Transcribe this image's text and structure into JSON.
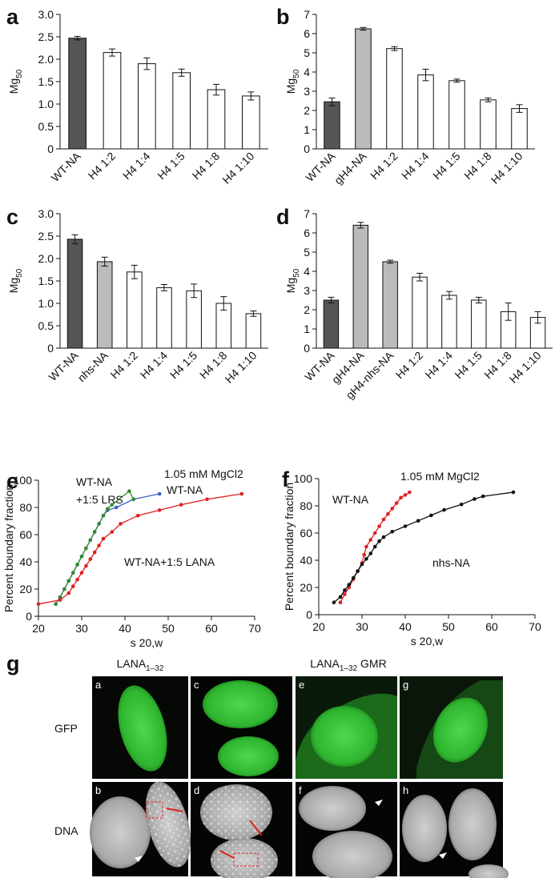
{
  "chart_data": [
    {
      "type": "bar",
      "label": "a",
      "y_label": "Mg",
      "y_label_subscript": "50",
      "categories": [
        "WT-NA",
        "H4 1:2",
        "H4 1:4",
        "H4 1:5",
        "H4 1:8",
        "H4 1:10"
      ],
      "values": [
        2.47,
        2.15,
        1.9,
        1.7,
        1.32,
        1.18
      ],
      "errors": [
        0.04,
        0.08,
        0.13,
        0.08,
        0.12,
        0.09
      ],
      "colors": [
        "#555555",
        "#ffffff",
        "#ffffff",
        "#ffffff",
        "#ffffff",
        "#ffffff"
      ],
      "ylim": [
        0,
        3
      ],
      "yticks": [
        0,
        0.5,
        {
          "value": 1,
          "label": "1.0"
        },
        1.5,
        {
          "value": 2,
          "label": "2.0"
        },
        2.5,
        {
          "value": 3,
          "label": "3.0"
        }
      ]
    },
    {
      "type": "bar",
      "label": "b",
      "y_label": "Mg",
      "y_label_subscript": "50",
      "categories": [
        "WT-NA",
        "gH4-NA",
        "H4 1:2",
        "H4 1:4",
        "H4 1:5",
        "H4 1:8",
        "H4 1:10"
      ],
      "values": [
        2.45,
        6.25,
        5.22,
        3.85,
        3.55,
        2.55,
        2.1
      ],
      "errors": [
        0.2,
        0.07,
        0.1,
        0.3,
        0.08,
        0.1,
        0.2
      ],
      "colors": [
        "#555555",
        "#bbbbbb",
        "#ffffff",
        "#ffffff",
        "#ffffff",
        "#ffffff",
        "#ffffff"
      ],
      "ylim": [
        0,
        7
      ],
      "yticks": [
        0,
        1,
        2,
        3,
        4,
        5,
        6,
        7
      ]
    },
    {
      "type": "bar",
      "label": "c",
      "y_label": "Mg",
      "y_label_subscript": "50",
      "categories": [
        "WT-NA",
        "nhs-NA",
        "H4 1:2",
        "H4 1:4",
        "H4 1:5",
        "H4 1:8",
        "H4 1:10"
      ],
      "values": [
        2.43,
        1.93,
        1.7,
        1.35,
        1.28,
        1.0,
        0.77
      ],
      "errors": [
        0.1,
        0.1,
        0.15,
        0.07,
        0.15,
        0.15,
        0.06
      ],
      "colors": [
        "#555555",
        "#bbbbbb",
        "#ffffff",
        "#ffffff",
        "#ffffff",
        "#ffffff",
        "#ffffff"
      ],
      "ylim": [
        0,
        3
      ],
      "yticks": [
        0,
        0.5,
        {
          "value": 1,
          "label": "1.0"
        },
        1.5,
        {
          "value": 2,
          "label": "2.0"
        },
        2.5,
        {
          "value": 3,
          "label": "3.0"
        }
      ]
    },
    {
      "type": "bar",
      "label": "d",
      "y_label": "Mg",
      "y_label_subscript": "50",
      "categories": [
        "WT-NA",
        "gH4-NA",
        "gH4-nhs-NA",
        "H4 1:2",
        "H4 1:4",
        "H4 1:5",
        "H4 1:8",
        "H4 1:10"
      ],
      "values": [
        2.5,
        6.4,
        4.5,
        3.7,
        2.75,
        2.5,
        1.9,
        1.6
      ],
      "errors": [
        0.15,
        0.15,
        0.08,
        0.2,
        0.2,
        0.15,
        0.45,
        0.3
      ],
      "colors": [
        "#555555",
        "#bbbbbb",
        "#bbbbbb",
        "#ffffff",
        "#ffffff",
        "#ffffff",
        "#ffffff",
        "#ffffff"
      ],
      "ylim": [
        0,
        7
      ],
      "yticks": [
        0,
        1,
        2,
        3,
        4,
        5,
        6,
        7
      ]
    },
    {
      "type": "line",
      "label": "e",
      "x_label": "s 20,w",
      "y_label": "Percent boundary fraction",
      "xlim": [
        20,
        70
      ],
      "xticks": [
        20,
        30,
        40,
        50,
        60,
        70
      ],
      "ylim": [
        0,
        100
      ],
      "yticks": [
        0,
        20,
        40,
        60,
        80,
        100
      ],
      "series": [
        {
          "color": "#3a5fcd",
          "x": [
            24,
            25,
            26,
            27,
            28,
            29,
            30,
            31,
            32,
            33,
            34,
            35,
            36,
            38,
            42,
            48
          ],
          "values": [
            9,
            14,
            20,
            26,
            32,
            38,
            44,
            50,
            56,
            62,
            68,
            74,
            78,
            80,
            86,
            90
          ]
        },
        {
          "color": "#2e8b2e",
          "x": [
            24,
            25,
            26,
            27,
            28,
            29,
            30,
            31,
            32,
            33,
            34,
            35,
            36,
            37,
            41,
            42
          ],
          "values": [
            9,
            14,
            20,
            26,
            32,
            38,
            44,
            50,
            56,
            62,
            68,
            74,
            79,
            82,
            92,
            86
          ]
        },
        {
          "color": "#e02020",
          "x": [
            20,
            25,
            27,
            28,
            29,
            30,
            31,
            32,
            33,
            34,
            35,
            37,
            39,
            43,
            48,
            53,
            59,
            67
          ],
          "values": [
            9,
            12,
            17,
            22,
            27,
            32,
            37,
            42,
            47,
            52,
            57,
            62,
            68,
            74,
            78,
            82,
            86,
            90
          ]
        }
      ],
      "annotations": [
        "1.05 mM MgCl2",
        "WT-NA",
        "WT-NA",
        "+1:5 LRS",
        "WT-NA+1:5 LANA"
      ]
    },
    {
      "type": "line",
      "label": "f",
      "x_label": "s 20,w",
      "y_label": "Percent boundary fraction",
      "xlim": [
        20,
        70
      ],
      "xticks": [
        20,
        30,
        40,
        50,
        60,
        70
      ],
      "ylim": [
        0,
        100
      ],
      "yticks": [
        0,
        20,
        40,
        60,
        80,
        100
      ],
      "series": [
        {
          "color": "#e02020",
          "x": [
            25,
            26,
            27,
            28,
            29,
            30,
            30.5,
            31,
            32,
            33,
            34,
            35,
            36,
            37,
            38,
            39,
            40,
            41
          ],
          "values": [
            9,
            15,
            20,
            26,
            32,
            38,
            44,
            50,
            55,
            60,
            65,
            70,
            74,
            78,
            82,
            86,
            88,
            90
          ]
        },
        {
          "color": "#111111",
          "x": [
            23.5,
            25,
            26,
            27,
            28,
            29,
            30,
            31,
            32,
            33,
            34,
            35,
            37,
            40,
            43,
            46,
            49,
            53,
            56,
            58,
            65
          ],
          "values": [
            9,
            13,
            18,
            22,
            27,
            32,
            37,
            41,
            45,
            50,
            54,
            57,
            61,
            65,
            69,
            73,
            77,
            81,
            85,
            87,
            90
          ]
        }
      ],
      "annotations": [
        "1.05 mM MgCl2",
        "WT-NA",
        "nhs-NA"
      ]
    }
  ],
  "figure_g": {
    "label": "g",
    "columns": [
      {
        "text": "LANA",
        "subscript": "1–32"
      },
      {
        "text": "LANA",
        "subscript": "1–32",
        "suffix": " GMR"
      }
    ],
    "rows": [
      "GFP",
      "DNA"
    ],
    "panels": [
      "a",
      "c",
      "e",
      "g",
      "b",
      "d",
      "f",
      "h"
    ]
  }
}
